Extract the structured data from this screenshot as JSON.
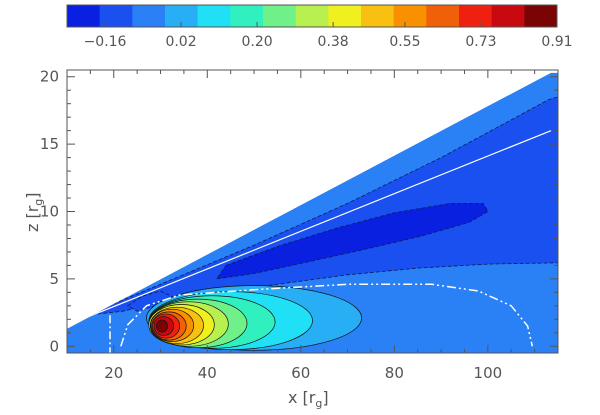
{
  "chart_data": {
    "type": "contour",
    "xlabel": "x",
    "xlabel_sub": "r",
    "xlabel_subsub": "g",
    "ylabel": "z",
    "ylabel_sub": "r",
    "ylabel_subsub": "g",
    "xlim": [
      10,
      115
    ],
    "ylim": [
      -0.5,
      20.5
    ],
    "xticks": [
      20,
      40,
      60,
      80,
      100
    ],
    "yticks": [
      0,
      5,
      10,
      15,
      20
    ],
    "colorbar": {
      "range": [
        -0.25,
        0.91
      ],
      "tick_labels": [
        "−0.16",
        "0.02",
        "0.20",
        "0.38",
        "0.55",
        "0.73",
        "0.91"
      ],
      "tick_values": [
        -0.16,
        0.02,
        0.2,
        0.38,
        0.55,
        0.73,
        0.91
      ],
      "colors": [
        "#0a20e0",
        "#1a50f0",
        "#2a80f5",
        "#28aef5",
        "#20e0f5",
        "#30f0c0",
        "#70f088",
        "#b8f050",
        "#f0f020",
        "#f8c010",
        "#f89000",
        "#f06008",
        "#f02010",
        "#c80a10",
        "#7a0404"
      ]
    },
    "features": {
      "torus_peak": {
        "x": 30,
        "z": 1.5,
        "value": 0.91
      },
      "negative_lobe_min": {
        "x": 68,
        "z": 9,
        "value": -0.25
      }
    }
  }
}
